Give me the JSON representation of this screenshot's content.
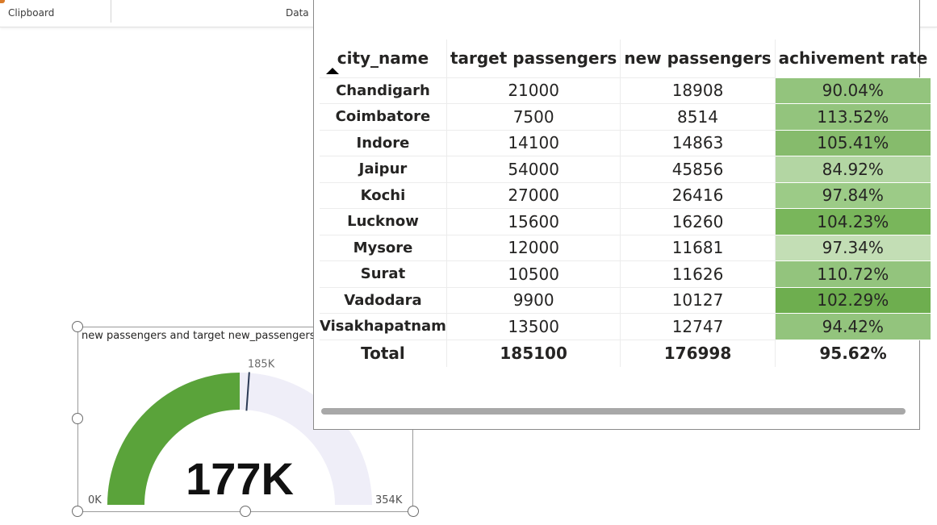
{
  "ribbon": {
    "groups": [
      {
        "label": "Clipboard"
      },
      {
        "label": "Data"
      }
    ]
  },
  "gauge": {
    "title": "new passengers and target new_passengers",
    "value": 176998,
    "value_label": "177K",
    "min": 0,
    "min_label": "0K",
    "max": 354000,
    "max_label": "354K",
    "target": 185100,
    "target_label": "185K",
    "colors": {
      "fill": "#5aa33a",
      "track": "#efeef8",
      "target_line": "#2b3a55"
    }
  },
  "table": {
    "columns": [
      "city_name",
      "target passengers",
      "new passengers",
      "achivement rate"
    ],
    "sort": {
      "column": "city_name",
      "direction": "ascending"
    },
    "rows": [
      {
        "city": "Chandigarh",
        "target": "21000",
        "new": "18908",
        "rate": "90.04%",
        "bg": "#93c47d"
      },
      {
        "city": "Coimbatore",
        "target": "7500",
        "new": "8514",
        "rate": "113.52%",
        "bg": "#93c47d"
      },
      {
        "city": "Indore",
        "target": "14100",
        "new": "14863",
        "rate": "105.41%",
        "bg": "#86bb6c"
      },
      {
        "city": "Jaipur",
        "target": "54000",
        "new": "45856",
        "rate": "84.92%",
        "bg": "#b3d6a3"
      },
      {
        "city": "Kochi",
        "target": "27000",
        "new": "26416",
        "rate": "97.84%",
        "bg": "#9ccb87"
      },
      {
        "city": "Lucknow",
        "target": "15600",
        "new": "16260",
        "rate": "104.23%",
        "bg": "#79b65b"
      },
      {
        "city": "Mysore",
        "target": "12000",
        "new": "11681",
        "rate": "97.34%",
        "bg": "#c3deb5"
      },
      {
        "city": "Surat",
        "target": "10500",
        "new": "11626",
        "rate": "110.72%",
        "bg": "#93c47d"
      },
      {
        "city": "Vadodara",
        "target": "9900",
        "new": "10127",
        "rate": "102.29%",
        "bg": "#6eae4f"
      },
      {
        "city": "Visakhapatnam",
        "target": "13500",
        "new": "12747",
        "rate": "94.42%",
        "bg": "#93c47d"
      }
    ],
    "total": {
      "label": "Total",
      "target": "185100",
      "new": "176998",
      "rate": "95.62%"
    }
  }
}
